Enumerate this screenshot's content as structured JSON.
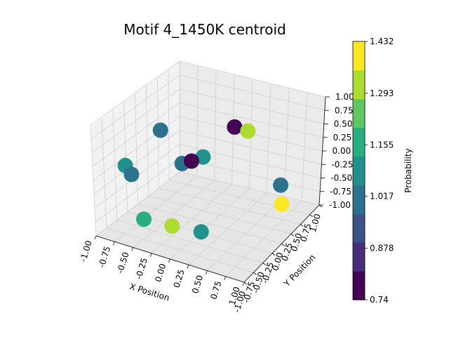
{
  "chart_data": {
    "type": "scatter",
    "projection": "3d",
    "title": "Motif 4_1450K centroid",
    "xlabel": "X Position",
    "ylabel": "Y Position",
    "zlabel": "",
    "xlim": [
      -1.0,
      1.0
    ],
    "ylim": [
      -1.0,
      1.0
    ],
    "zlim": [
      -1.0,
      1.0
    ],
    "grid": true,
    "x_ticks": [
      "-1.00",
      "-0.75",
      "-0.50",
      "-0.25",
      "0.00",
      "0.25",
      "0.50",
      "0.75",
      "1.00"
    ],
    "y_ticks": [
      "-1.00",
      "-0.75",
      "-0.50",
      "-0.25",
      "0.00",
      "0.25",
      "0.50",
      "0.75",
      "1.00"
    ],
    "z_ticks": [
      "-1.00",
      "-0.75",
      "-0.50",
      "-0.25",
      "0.00",
      "0.25",
      "0.50",
      "0.75",
      "1.00"
    ],
    "colormap": "viridis",
    "colorbar": {
      "label": "Probability",
      "min": 0.74,
      "max": 1.432,
      "ticks": [
        "0.74",
        "0.878",
        "1.017",
        "1.155",
        "1.293",
        "1.432"
      ],
      "colors": [
        "#440154",
        "#472d7b",
        "#3b528b",
        "#2c728e",
        "#21918c",
        "#28ae80",
        "#5ec962",
        "#addc30",
        "#fde725"
      ]
    },
    "points": [
      {
        "x": -0.55,
        "y": -0.2,
        "z": 0.62,
        "value": 1.0
      },
      {
        "x": -0.8,
        "y": -0.6,
        "z": 0.12,
        "value": 1.05
      },
      {
        "x": -0.75,
        "y": -0.55,
        "z": -0.05,
        "value": 1.03
      },
      {
        "x": 0.3,
        "y": 0.05,
        "z": 0.85,
        "value": 0.75
      },
      {
        "x": 0.45,
        "y": 0.1,
        "z": 0.8,
        "value": 1.3
      },
      {
        "x": -0.15,
        "y": 0.1,
        "z": 0.1,
        "value": 1.05
      },
      {
        "x": -0.25,
        "y": 0.0,
        "z": 0.05,
        "value": 0.77
      },
      {
        "x": -0.35,
        "y": -0.05,
        "z": 0.0,
        "value": 0.98
      },
      {
        "x": 0.6,
        "y": 0.7,
        "z": -0.55,
        "value": 0.99
      },
      {
        "x": 0.65,
        "y": 0.65,
        "z": -0.85,
        "value": 1.43
      },
      {
        "x": -0.6,
        "y": -0.55,
        "z": -0.8,
        "value": 1.2
      },
      {
        "x": -0.3,
        "y": -0.4,
        "z": -0.9,
        "value": 1.3
      },
      {
        "x": 0.1,
        "y": -0.4,
        "z": -0.85,
        "value": 1.06
      }
    ]
  }
}
